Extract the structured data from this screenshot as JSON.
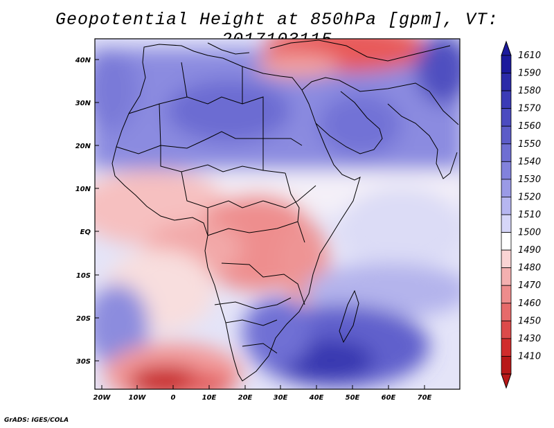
{
  "title": "Geopotential Height at 850hPa [gpm], VT: 2017103115",
  "credit": "GrADS: IGES/COLA",
  "lat_labels": [
    "40N",
    "30N",
    "20N",
    "10N",
    "EQ",
    "10S",
    "20S",
    "30S"
  ],
  "lon_labels": [
    "20W",
    "10W",
    "0",
    "10E",
    "20E",
    "30E",
    "40E",
    "50E",
    "60E",
    "70E"
  ],
  "colorbar": {
    "levels": [
      "1610",
      "1590",
      "1580",
      "1570",
      "1560",
      "1550",
      "1540",
      "1530",
      "1520",
      "1510",
      "1500",
      "1490",
      "1480",
      "1470",
      "1460",
      "1450",
      "1430",
      "1410"
    ],
    "colors": [
      "#1c1a9c",
      "#2b2aa8",
      "#3b3bb6",
      "#4b4bc0",
      "#5c5cc8",
      "#6e6ed2",
      "#8282dc",
      "#9a9ae6",
      "#b6b6f0",
      "#d6d6f8",
      "#ffffff",
      "#fad4d4",
      "#f4b0b0",
      "#ee8c8c",
      "#e66a6a",
      "#dc4a4a",
      "#d02c2c",
      "#b81818"
    ]
  },
  "map": {
    "region": "Africa and Middle East",
    "field": "850hPa geopotential height"
  }
}
